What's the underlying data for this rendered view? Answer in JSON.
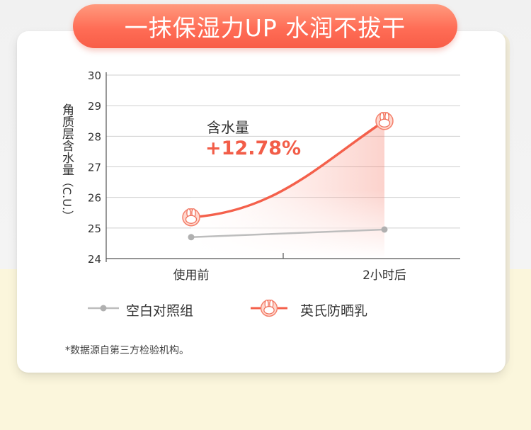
{
  "title": "一抹保湿力UP 水润不拔干",
  "annotation": {
    "label": "含水量",
    "value": "+12.78%"
  },
  "legend": [
    {
      "label": "空白对照组"
    },
    {
      "label": "英氏防晒乳"
    }
  ],
  "footnote": "*数据源自第三方检验机构。",
  "colors": {
    "accent": "#f4604b",
    "control": "#bdbdbd",
    "title_gradient_top": "#ff9a7e",
    "title_gradient_bottom": "#f85d47"
  },
  "chart_data": {
    "type": "line",
    "categories": [
      "使用前",
      "2小时后"
    ],
    "series": [
      {
        "name": "空白对照组",
        "values": [
          24.7,
          24.95
        ],
        "color": "#bdbdbd",
        "marker": "dot"
      },
      {
        "name": "英氏防晒乳",
        "values": [
          25.35,
          28.5
        ],
        "color": "#f4604b",
        "marker": "bunny-icon"
      }
    ],
    "ylabel": "角质层含水量",
    "yunit": "（C.U.）",
    "ylim": [
      24,
      30
    ],
    "yticks": [
      "24",
      "25",
      "26",
      "27",
      "28",
      "29",
      "30"
    ],
    "grid": true,
    "legend_position": "bottom"
  }
}
